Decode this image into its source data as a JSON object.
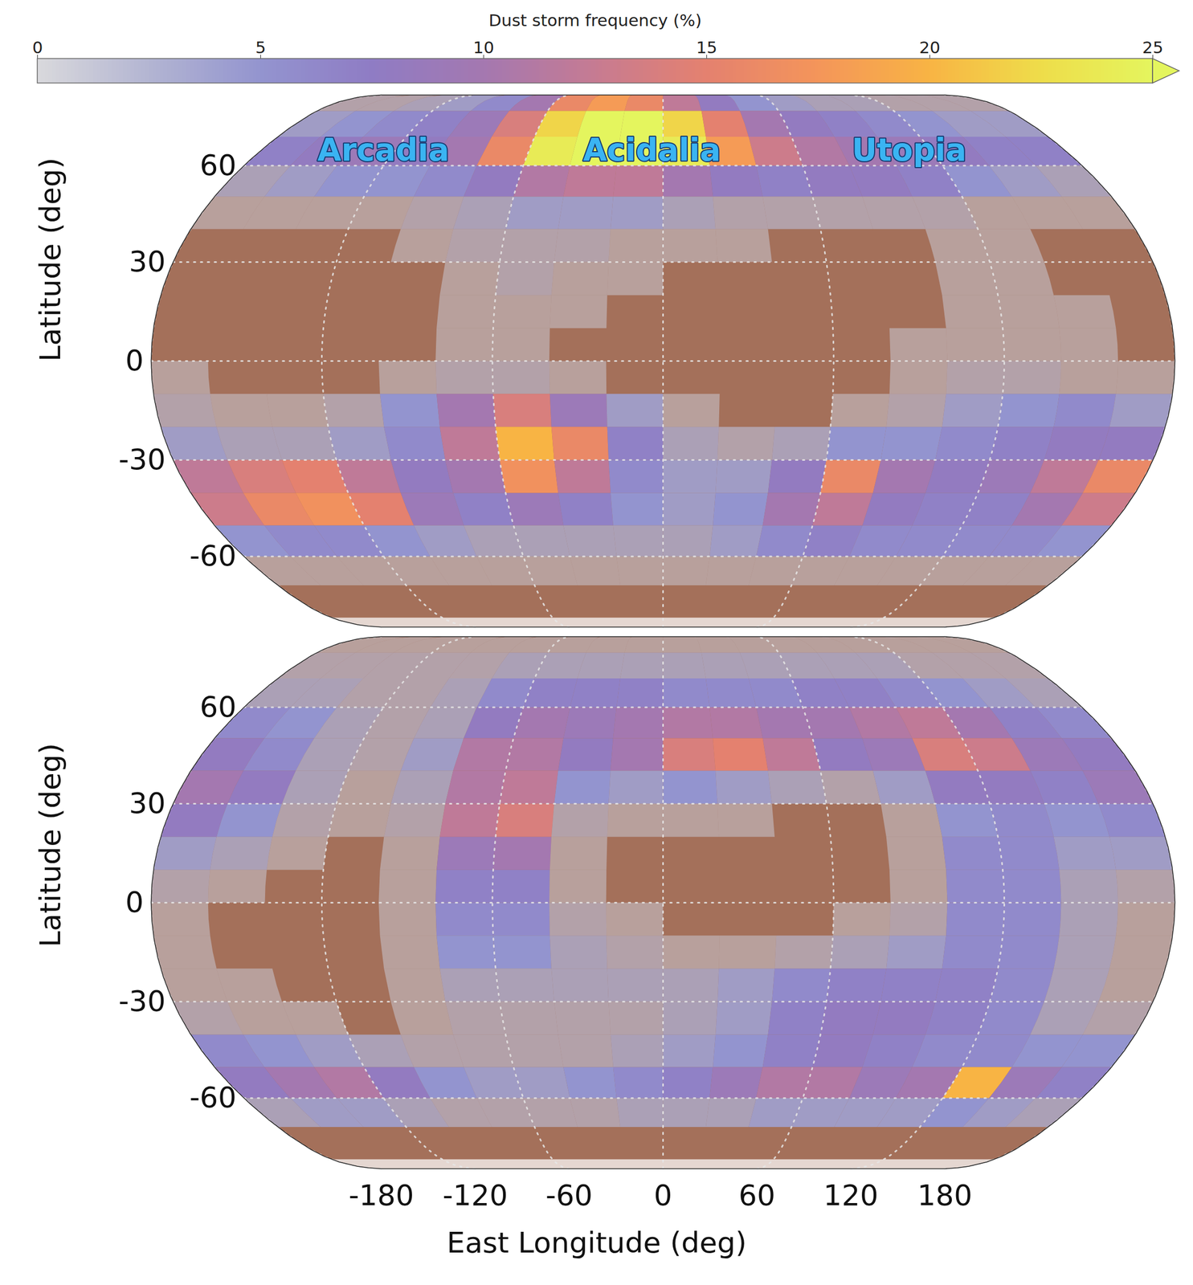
{
  "chart_data": {
    "type": "heatmap",
    "xlabel": "East Longitude (deg)",
    "ylabel": "Latitude (deg)",
    "xlim": [
      -180,
      180
    ],
    "xticks": [
      -180,
      -120,
      -60,
      0,
      60,
      120,
      180
    ],
    "ylim": [
      -90,
      90
    ],
    "yticks": [
      -60,
      -30,
      0,
      30,
      60
    ],
    "grid": true,
    "colorbar": {
      "label": "Dust storm frequency (%)",
      "range": [
        0,
        25
      ],
      "ticks": [
        0,
        5,
        10,
        15,
        20,
        25
      ]
    },
    "lon_edges": [
      -180,
      -160,
      -140,
      -120,
      -100,
      -80,
      -60,
      -40,
      -20,
      0,
      20,
      40,
      60,
      80,
      100,
      120,
      140,
      160,
      180
    ],
    "lat_edges": [
      90,
      80,
      70,
      60,
      50,
      40,
      30,
      20,
      10,
      0,
      -10,
      -20,
      -30,
      -40,
      -50,
      -60,
      -70,
      -80,
      -90
    ],
    "panels": [
      {
        "cells": [
          [
            2,
            2,
            3,
            4,
            6,
            10,
            16,
            18,
            16,
            12,
            8,
            5,
            4,
            3,
            3,
            2,
            2,
            2
          ],
          [
            4,
            5,
            6,
            7,
            9,
            14,
            22,
            27,
            27,
            22,
            15,
            10,
            8,
            7,
            6,
            5,
            4,
            4
          ],
          [
            7,
            8,
            9,
            8,
            10,
            16,
            24,
            28,
            28,
            24,
            18,
            13,
            11,
            10,
            9,
            8,
            7,
            7
          ],
          [
            3,
            4,
            5,
            5,
            6,
            8,
            11,
            12,
            12,
            10,
            8,
            7,
            8,
            8,
            7,
            5,
            4,
            3
          ],
          [
            1,
            1,
            1,
            1,
            2,
            3,
            4,
            4,
            4,
            3,
            2,
            2,
            2,
            2,
            2,
            1,
            1,
            1
          ],
          [
            0,
            0,
            0,
            0,
            1,
            2,
            2,
            2,
            1,
            1,
            1,
            0,
            0,
            0,
            1,
            1,
            0,
            0
          ],
          [
            0,
            0,
            0,
            0,
            0,
            1,
            2,
            1,
            1,
            0,
            0,
            0,
            0,
            0,
            1,
            1,
            0,
            0
          ],
          [
            0,
            0,
            0,
            0,
            0,
            1,
            1,
            1,
            0,
            0,
            0,
            0,
            0,
            0,
            1,
            1,
            1,
            0
          ],
          [
            0,
            0,
            0,
            0,
            0,
            1,
            1,
            0,
            0,
            0,
            0,
            0,
            0,
            1,
            1,
            1,
            1,
            0
          ],
          [
            1,
            0,
            0,
            0,
            1,
            2,
            2,
            1,
            0,
            0,
            0,
            0,
            0,
            1,
            2,
            2,
            1,
            1
          ],
          [
            2,
            1,
            1,
            2,
            5,
            10,
            14,
            9,
            4,
            1,
            0,
            0,
            1,
            2,
            4,
            5,
            6,
            4
          ],
          [
            4,
            3,
            3,
            4,
            6,
            12,
            20,
            16,
            7,
            3,
            2,
            3,
            5,
            5,
            6,
            7,
            8,
            8
          ],
          [
            12,
            14,
            15,
            12,
            8,
            10,
            17,
            12,
            6,
            4,
            4,
            8,
            16,
            10,
            8,
            9,
            12,
            16
          ],
          [
            13,
            16,
            17,
            15,
            9,
            7,
            9,
            7,
            5,
            4,
            5,
            10,
            12,
            8,
            7,
            7,
            10,
            13
          ],
          [
            5,
            6,
            6,
            5,
            4,
            3,
            3,
            3,
            3,
            3,
            4,
            6,
            7,
            6,
            6,
            6,
            6,
            5
          ],
          [
            1,
            1,
            1,
            1,
            1,
            1,
            1,
            1,
            1,
            1,
            1,
            1,
            1,
            1,
            1,
            1,
            1,
            1
          ],
          [
            0,
            0,
            0,
            0,
            0,
            0,
            0,
            0,
            0,
            0,
            0,
            0,
            0,
            0,
            0,
            0,
            0,
            0
          ],
          [
            0,
            0,
            0,
            0,
            0,
            0,
            0,
            0,
            0,
            0,
            0,
            0,
            0,
            0,
            0,
            0,
            0,
            0
          ]
        ],
        "annotations": [
          {
            "text": "Arcadia",
            "lon": -125,
            "lat": 65
          },
          {
            "text": "Acidalia",
            "lon": -5,
            "lat": 65
          },
          {
            "text": "Utopia",
            "lon": 110,
            "lat": 65
          }
        ]
      },
      {
        "cells": [
          [
            1,
            1,
            1,
            1,
            1,
            1,
            1,
            1,
            1,
            1,
            1,
            1,
            1,
            1,
            1,
            1,
            1,
            1
          ],
          [
            2,
            2,
            2,
            2,
            2,
            3,
            3,
            3,
            3,
            3,
            3,
            3,
            3,
            3,
            3,
            2,
            2,
            2
          ],
          [
            3,
            3,
            2,
            2,
            3,
            6,
            7,
            7,
            7,
            6,
            6,
            6,
            7,
            7,
            6,
            5,
            4,
            3
          ],
          [
            6,
            5,
            3,
            2,
            3,
            8,
            10,
            9,
            10,
            11,
            11,
            10,
            10,
            11,
            12,
            10,
            7,
            6
          ],
          [
            8,
            6,
            3,
            2,
            4,
            11,
            11,
            8,
            10,
            14,
            15,
            12,
            8,
            9,
            14,
            13,
            9,
            8
          ],
          [
            10,
            8,
            3,
            1,
            3,
            11,
            12,
            5,
            4,
            5,
            4,
            3,
            2,
            4,
            8,
            8,
            7,
            9
          ],
          [
            8,
            5,
            2,
            1,
            2,
            12,
            14,
            2,
            1,
            1,
            1,
            0,
            0,
            1,
            5,
            6,
            5,
            6
          ],
          [
            4,
            3,
            1,
            0,
            1,
            9,
            10,
            1,
            0,
            0,
            0,
            0,
            0,
            1,
            6,
            6,
            4,
            4
          ],
          [
            2,
            1,
            0,
            0,
            1,
            7,
            7,
            1,
            0,
            0,
            0,
            0,
            0,
            1,
            6,
            6,
            3,
            2
          ],
          [
            1,
            0,
            0,
            0,
            1,
            6,
            6,
            2,
            1,
            0,
            0,
            0,
            1,
            2,
            6,
            6,
            3,
            1
          ],
          [
            1,
            0,
            0,
            0,
            1,
            5,
            5,
            3,
            2,
            1,
            1,
            2,
            3,
            4,
            6,
            6,
            3,
            1
          ],
          [
            1,
            1,
            0,
            0,
            1,
            3,
            3,
            3,
            3,
            3,
            4,
            6,
            7,
            7,
            7,
            6,
            3,
            1
          ],
          [
            2,
            1,
            1,
            0,
            1,
            2,
            2,
            2,
            2,
            3,
            4,
            7,
            8,
            8,
            7,
            6,
            3,
            2
          ],
          [
            6,
            5,
            4,
            3,
            2,
            2,
            2,
            2,
            3,
            4,
            5,
            7,
            8,
            7,
            6,
            6,
            5,
            5
          ],
          [
            8,
            10,
            11,
            8,
            5,
            4,
            4,
            5,
            6,
            7,
            9,
            11,
            11,
            9,
            10,
            20,
            9,
            7
          ],
          [
            3,
            4,
            4,
            3,
            2,
            2,
            2,
            2,
            3,
            3,
            3,
            4,
            4,
            4,
            4,
            5,
            4,
            3
          ],
          [
            0,
            0,
            0,
            0,
            0,
            0,
            0,
            0,
            0,
            0,
            0,
            0,
            0,
            0,
            0,
            0,
            0,
            0
          ],
          [
            0,
            0,
            0,
            0,
            0,
            0,
            0,
            0,
            0,
            0,
            0,
            0,
            0,
            0,
            0,
            0,
            0,
            0
          ]
        ]
      }
    ]
  }
}
